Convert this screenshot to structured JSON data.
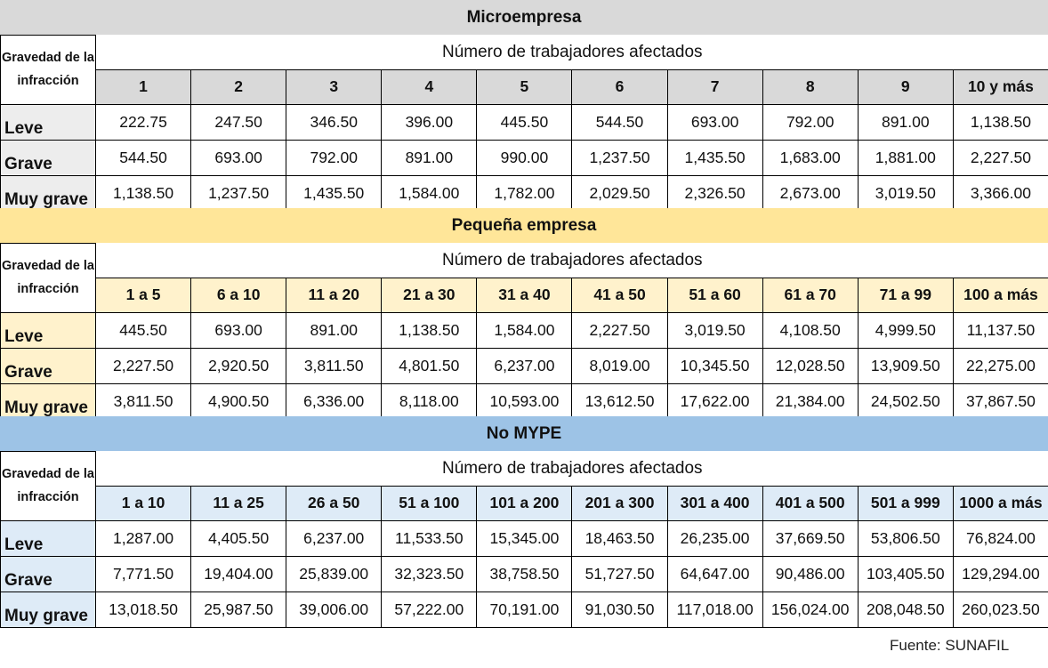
{
  "colors": {
    "micro_title": "#d9d9d9",
    "micro_header": "#d9d9d9",
    "micro_rowlabel": "#ededed",
    "pequena_title": "#ffe699",
    "pequena_header": "#fff2cc",
    "pequena_rowlabel": "#fff2cc",
    "nomype_title": "#9dc3e6",
    "nomype_header": "#deebf7",
    "nomype_rowlabel": "#deebf7"
  },
  "row_header_label": "Gravedad de la infracción",
  "sub_header": "Número de trabajadores afectados",
  "sections": [
    {
      "title": "Microempresa",
      "columns": [
        "1",
        "2",
        "3",
        "4",
        "5",
        "6",
        "7",
        "8",
        "9",
        "10 y más"
      ],
      "rows": [
        {
          "label": "Leve",
          "values": [
            "222.75",
            "247.50",
            "346.50",
            "396.00",
            "445.50",
            "544.50",
            "693.00",
            "792.00",
            "891.00",
            "1,138.50"
          ]
        },
        {
          "label": "Grave",
          "values": [
            "544.50",
            "693.00",
            "792.00",
            "891.00",
            "990.00",
            "1,237.50",
            "1,435.50",
            "1,683.00",
            "1,881.00",
            "2,227.50"
          ]
        },
        {
          "label": "Muy grave",
          "values": [
            "1,138.50",
            "1,237.50",
            "1,435.50",
            "1,584.00",
            "1,782.00",
            "2,029.50",
            "2,326.50",
            "2,673.00",
            "3,019.50",
            "3,366.00"
          ]
        }
      ]
    },
    {
      "title": "Pequeña empresa",
      "columns": [
        "1 a 5",
        "6 a 10",
        "11 a 20",
        "21 a 30",
        "31 a 40",
        "41 a 50",
        "51 a 60",
        "61 a 70",
        "71 a 99",
        "100 a más"
      ],
      "rows": [
        {
          "label": "Leve",
          "values": [
            "445.50",
            "693.00",
            "891.00",
            "1,138.50",
            "1,584.00",
            "2,227.50",
            "3,019.50",
            "4,108.50",
            "4,999.50",
            "11,137.50"
          ]
        },
        {
          "label": "Grave",
          "values": [
            "2,227.50",
            "2,920.50",
            "3,811.50",
            "4,801.50",
            "6,237.00",
            "8,019.00",
            "10,345.50",
            "12,028.50",
            "13,909.50",
            "22,275.00"
          ]
        },
        {
          "label": "Muy grave",
          "values": [
            "3,811.50",
            "4,900.50",
            "6,336.00",
            "8,118.00",
            "10,593.00",
            "13,612.50",
            "17,622.00",
            "21,384.00",
            "24,502.50",
            "37,867.50"
          ]
        }
      ]
    },
    {
      "title": "No MYPE",
      "columns": [
        "1 a 10",
        "11 a 25",
        "26 a 50",
        "51 a 100",
        "101 a 200",
        "201 a 300",
        "301 a 400",
        "401 a 500",
        "501 a 999",
        "1000 a más"
      ],
      "rows": [
        {
          "label": "Leve",
          "values": [
            "1,287.00",
            "4,405.50",
            "6,237.00",
            "11,533.50",
            "15,345.00",
            "18,463.50",
            "26,235.00",
            "37,669.50",
            "53,806.50",
            "76,824.00"
          ]
        },
        {
          "label": "Grave",
          "values": [
            "7,771.50",
            "19,404.00",
            "25,839.00",
            "32,323.50",
            "38,758.50",
            "51,727.50",
            "64,647.00",
            "90,486.00",
            "103,405.50",
            "129,294.00"
          ]
        },
        {
          "label": "Muy grave",
          "values": [
            "13,018.50",
            "25,987.50",
            "39,006.00",
            "57,222.00",
            "70,191.00",
            "91,030.50",
            "117,018.00",
            "156,024.00",
            "208,048.50",
            "260,023.50"
          ]
        }
      ]
    }
  ],
  "source": "Fuente: SUNAFIL"
}
